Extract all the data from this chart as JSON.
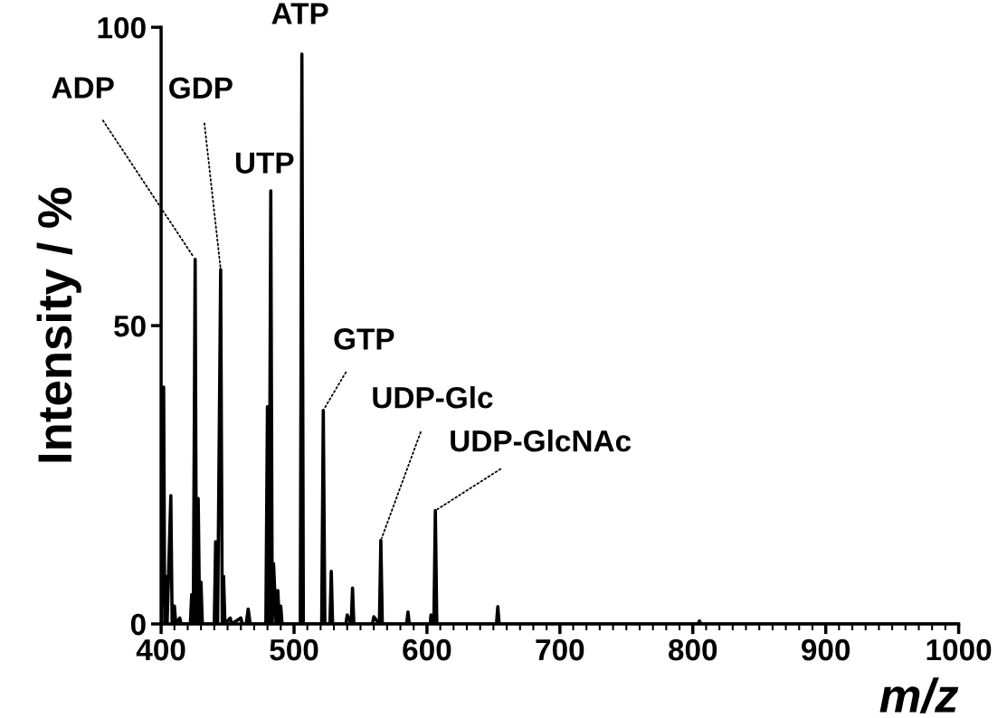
{
  "chart_data": {
    "type": "line",
    "xlabel": "m/z",
    "ylabel": "Intensity / %",
    "xlim": [
      400,
      1000
    ],
    "ylim": [
      0,
      100
    ],
    "xticks": [
      400,
      500,
      600,
      700,
      800,
      900,
      1000
    ],
    "yticks": [
      0,
      50,
      100
    ],
    "grid": false,
    "legend": false,
    "marker": "none",
    "line_style": "solid",
    "series": [
      {
        "color": "#000000",
        "x": [
          400,
          401.9,
          402.7,
          403.5,
          404.5,
          407.3,
          408.3,
          410,
          411,
          414,
          415,
          422,
          423,
          424.2,
          425.6,
          426.6,
          427.9,
          429,
          430,
          431,
          440,
          441,
          442.5,
          444.8,
          446,
          447,
          448,
          452,
          453,
          460,
          461,
          464,
          465.5,
          467,
          478.8,
          480,
          481.2,
          482.5,
          483.6,
          484.6,
          486.5,
          487.8,
          489,
          490,
          491,
          504.7,
          505.9,
          507,
          520.8,
          522,
          523.2,
          527,
          528,
          529,
          539,
          540,
          543,
          544,
          545,
          559,
          560,
          564.2,
          565.3,
          566.4,
          584.7,
          585.7,
          586.7,
          602.5,
          603,
          605.2,
          606.3,
          607.4,
          652.3,
          653.3,
          654.3,
          804,
          805,
          806,
          1000
        ],
        "values": [
          0,
          39.7,
          0,
          8,
          0,
          21.5,
          0,
          3,
          0,
          1,
          0,
          0,
          4.9,
          0,
          61.1,
          0,
          21,
          0,
          7,
          0,
          0,
          13.8,
          0,
          59.4,
          0,
          8,
          0,
          1,
          0,
          1,
          0,
          0,
          2.5,
          0,
          0,
          36.4,
          0,
          72.6,
          0,
          10.1,
          0,
          5.6,
          0,
          3,
          0,
          0,
          95.5,
          0,
          0,
          35.8,
          0,
          0,
          8.8,
          0,
          0,
          1.5,
          0,
          6.0,
          0,
          0,
          1.2,
          0,
          14.0,
          0,
          0,
          2.0,
          0,
          0,
          1.5,
          0,
          19.0,
          0,
          0,
          2.9,
          0,
          0,
          0.5,
          0,
          0
        ]
      }
    ],
    "annotations": [
      {
        "text": "ADP",
        "x": 425.6,
        "y": 61.1
      },
      {
        "text": "GDP",
        "x": 444.8,
        "y": 59.4
      },
      {
        "text": "UTP",
        "x": 482.5,
        "y": 72.6
      },
      {
        "text": "ATP",
        "x": 505.9,
        "y": 95.5
      },
      {
        "text": "GTP",
        "x": 522,
        "y": 35.8
      },
      {
        "text": "UDP-Glc",
        "x": 565.3,
        "y": 14.0
      },
      {
        "text": "UDP-GlcNAc",
        "x": 606.3,
        "y": 19.0
      }
    ]
  }
}
